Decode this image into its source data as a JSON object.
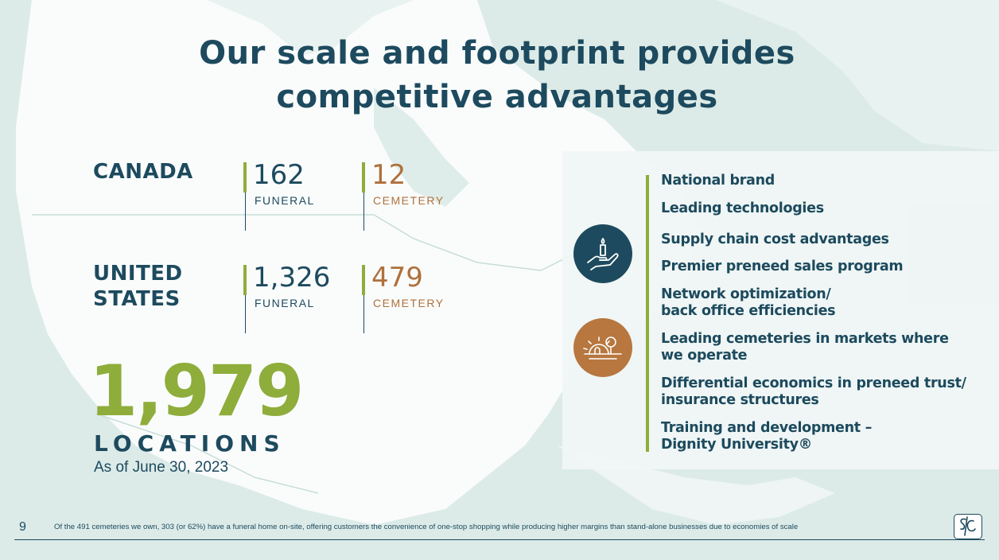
{
  "title": {
    "line1": "Our scale and footprint provides",
    "line2": "competitive advantages"
  },
  "regions": [
    {
      "name_line1": "CANADA",
      "name_line2": "",
      "funeral_count": "162",
      "funeral_label": "FUNERAL",
      "cemetery_count": "12",
      "cemetery_label": "CEMETERY"
    },
    {
      "name_line1": "UNITED",
      "name_line2": "STATES",
      "funeral_count": "1,326",
      "funeral_label": "FUNERAL",
      "cemetery_count": "479",
      "cemetery_label": "CEMETERY"
    }
  ],
  "total": {
    "number": "1,979",
    "label": "LOCATIONS",
    "as_of": "As of June 30, 2023"
  },
  "advantages": [
    {
      "line1": "National brand",
      "line2": ""
    },
    {
      "line1": "Leading technologies",
      "line2": ""
    },
    {
      "line1": "Supply chain cost advantages",
      "line2": ""
    },
    {
      "line1": "Premier preneed sales program",
      "line2": ""
    },
    {
      "line1": "Network optimization/",
      "line2": "back office efficiencies"
    },
    {
      "line1": "Leading cemeteries in markets where",
      "line2": "we operate"
    },
    {
      "line1": "Differential economics in preneed trust/",
      "line2": "insurance structures"
    },
    {
      "line1": "Training and development –",
      "line2": "Dignity University®"
    }
  ],
  "icons": [
    {
      "name": "hand-candle-icon",
      "color": "#1d4a5e"
    },
    {
      "name": "cemetery-tree-sunrise-icon",
      "color": "#b7773f"
    }
  ],
  "footer": {
    "page_number": "9",
    "footnote": "Of the 491 cemeteries we own, 303 (or 62%) have a funeral home on-site, offering customers the convenience of one-stop shopping while producing higher margins than stand-alone businesses due to economies of scale",
    "logo_text": "SCI"
  },
  "colors": {
    "navy": "#1d4a5e",
    "green": "#8fad3b",
    "copper": "#b0703a",
    "background": "#dcebe8"
  }
}
